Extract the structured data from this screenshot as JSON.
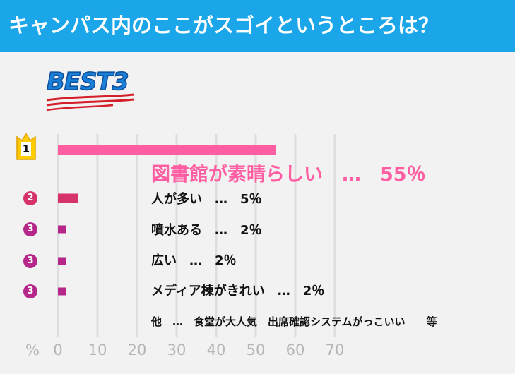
{
  "header": {
    "title": "キャンパス内のここがスゴイというところは？"
  },
  "badge": {
    "text": "BEST3"
  },
  "chart_data": {
    "type": "bar",
    "orientation": "horizontal",
    "xlim": [
      0,
      70
    ],
    "x_ticks": [
      "0",
      "10",
      "20",
      "30",
      "40",
      "50",
      "60",
      "70"
    ],
    "axis_unit": "%",
    "grid": true,
    "categories": [
      "図書館が素晴らしい",
      "人が多い",
      "噴水ある",
      "広い",
      "メディア棟がきれい"
    ],
    "values": [
      55,
      5,
      2,
      2,
      2
    ],
    "ranks": [
      "1",
      "2",
      "3",
      "3",
      "3"
    ],
    "labels": [
      "図書館が素晴らしい　…　55％",
      "人が多い　…　5％",
      "噴水ある　…　2％",
      "広い　…　2％",
      "メディア棟がきれい　…　2％"
    ],
    "colors": [
      "#ff5fa2",
      "#d6336c",
      "#b5288a",
      "#b5288a",
      "#b5288a"
    ],
    "note": "他　…　食堂が大人気　出席確認システムがっこいい　　等"
  }
}
